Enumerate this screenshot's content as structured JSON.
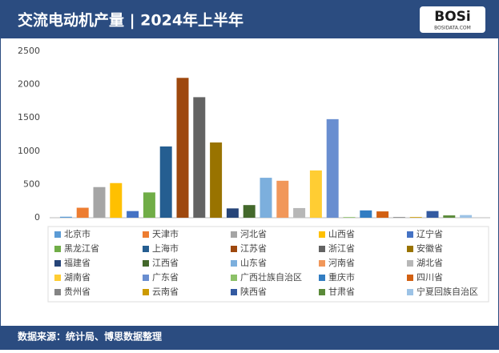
{
  "logo": {
    "name": "BOSi",
    "site": "BOSIDATA.COM"
  },
  "source": "数据来源：统计局、博思数据整理",
  "chart_data": {
    "type": "bar",
    "title": "交流电动机产量 | 2024年上半年",
    "categories": [
      "北京市",
      "天津市",
      "河北省",
      "山西省",
      "辽宁省",
      "黑龙江省",
      "上海市",
      "江苏省",
      "浙江省",
      "安徽省",
      "福建省",
      "江西省",
      "山东省",
      "河南省",
      "湖北省",
      "湖南省",
      "广东省",
      "广西壮族自治区",
      "重庆市",
      "四川省",
      "贵州省",
      "云南省",
      "陕西省",
      "甘肃省",
      "宁夏回族自治区"
    ],
    "values": [
      15,
      150,
      460,
      520,
      100,
      380,
      1070,
      2100,
      1810,
      1130,
      140,
      190,
      600,
      555,
      145,
      710,
      1480,
      10,
      110,
      95,
      10,
      10,
      100,
      35,
      40
    ],
    "colors": [
      "#5b9bd5",
      "#ed7d31",
      "#a5a5a5",
      "#ffc000",
      "#4472c4",
      "#70ad47",
      "#255e91",
      "#9e480e",
      "#636363",
      "#997300",
      "#264478",
      "#43682b",
      "#7cafdd",
      "#f1975a",
      "#b7b7b7",
      "#ffcd33",
      "#698ed0",
      "#8cc168",
      "#327dc2",
      "#d26012",
      "#848484",
      "#cc9a00",
      "#335aa1",
      "#5a8a39",
      "#9dc3e6"
    ],
    "ylim": [
      0,
      2500
    ],
    "yticks": [
      0,
      500,
      1000,
      1500,
      2000,
      2500
    ],
    "grid": false
  }
}
